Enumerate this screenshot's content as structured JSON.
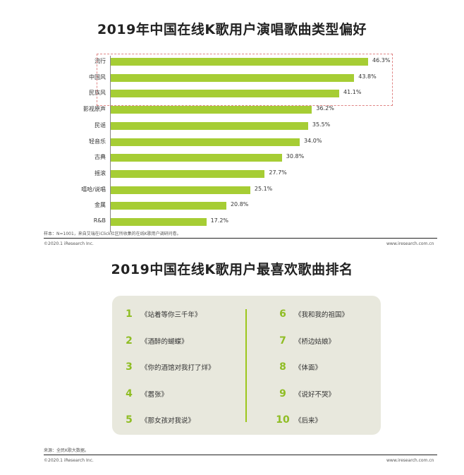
{
  "chart_title": "2019年中国在线K歌用户演唱歌曲类型偏好",
  "chart_data": {
    "type": "bar",
    "orientation": "horizontal",
    "title": "2019年中国在线K歌用户演唱歌曲类型偏好",
    "categories": [
      "流行",
      "中国风",
      "民族风",
      "影视原声",
      "民谣",
      "轻音乐",
      "古典",
      "摇滚",
      "嘻哈/说唱",
      "金属",
      "R&B"
    ],
    "values": [
      46.3,
      43.8,
      41.1,
      36.2,
      35.5,
      34.0,
      30.8,
      27.7,
      25.1,
      20.8,
      17.2
    ],
    "value_labels": [
      "46.3%",
      "43.8%",
      "41.1%",
      "36.2%",
      "35.5%",
      "34.0%",
      "30.8%",
      "27.7%",
      "25.1%",
      "20.8%",
      "17.2%"
    ],
    "unit": "%",
    "highlighted_top_n": 3,
    "bar_color": "#a6cd34",
    "highlight_color": "#e08585"
  },
  "sample_note": "样本：N=1001，来自艾瑞在iClick社区所收集的在线K歌用户调研问卷。",
  "copyright": "©2020.1 iResearch Inc.",
  "website": "www.iresearch.com.cn",
  "ranking": {
    "title": "2019中国在线K歌用户最喜欢歌曲排名",
    "left": [
      {
        "num": "1",
        "song": "《站着等你三千年》"
      },
      {
        "num": "2",
        "song": "《酒醉的蝴蝶》"
      },
      {
        "num": "3",
        "song": "《你的酒馆对我打了烊》"
      },
      {
        "num": "4",
        "song": "《嚣张》"
      },
      {
        "num": "5",
        "song": "《那女孩对我说》"
      }
    ],
    "right": [
      {
        "num": "6",
        "song": "《我和我的祖国》"
      },
      {
        "num": "7",
        "song": "《桥边姑娘》"
      },
      {
        "num": "8",
        "song": "《体面》"
      },
      {
        "num": "9",
        "song": "《说好不哭》"
      },
      {
        "num": "10",
        "song": "《后来》"
      }
    ],
    "accent_color": "#8fbd24",
    "box_color": "#e8e8dd"
  },
  "source_note": "来源：全民K歌大数据。",
  "copyright2": "©2020.1 iResearch Inc.",
  "website2": "www.iresearch.com.cn"
}
